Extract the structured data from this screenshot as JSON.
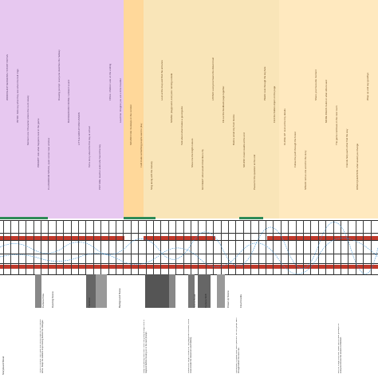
{
  "sheet": {
    "footer_label": "Storyboard Sheet",
    "bands": [
      {
        "color": "#e7c8f0"
      },
      {
        "color": "#ffd89a"
      },
      {
        "color": "#f9e5b8"
      },
      {
        "color": "#ffe9bf"
      }
    ],
    "column_texts": [
      "WORKSHOP SESSIONS / STORY NOTES",
      "INTRO: Kids say what they see when the bell rings",
      "Moment one: Character enters the room slowly",
      "PROMPT: Ask what happens next in the game",
      "CLASSROOM SPACE, quiet corner near window",
      "Drawing prompt: everyone sketches the hallway",
      "BACKGROUND NOISE / ambient sound",
      "LITTLE GROUP DISCUSSION",
      "Tell a story about the first day at school",
      "PICTURE: teacher asks who found the key",
      "FINAL: children vote on the ending",
      "Lead line: Imagine you are a time traveller",
      "SOUND CUE: footsteps in the corridor",
      "I will make something people want to play",
      "Sing along with the melody",
      "Look at the map and find the entrance",
      "SCENE: playground, everyone running outside",
      "Talk about what makes a good game",
      "Show me the bright colours",
      "GO DEEP: what would it feel like to fly",
      "LISTEN: everyone hears the distant train",
      "Fill out the feedback page together",
      "Build a small city from blocks",
      "SOUND: music swells at the end",
      "Pause for the question at the end",
      "PEEK: look through the keyhole",
      "Find the hidden object on the page",
      "CLOSE UP: look at the tiny details",
      "Follow the path through the forest",
      "SPEAK: tell us one word for the story",
      "Share your favourite moment",
      "MORE IDEAS: build on what others said",
      "The game continues in the next room",
      "Friends help each other find the way",
      "OPEN QUESTION: what would you change",
      "Wrap up and say goodbye"
    ],
    "row_labels": [
      "Camera Flow",
      "Opening Scene",
      "Transition",
      "Background Noise",
      "Scene Break",
      "Camera Shift",
      "Close Up Scene",
      "Final Credits"
    ],
    "notes": [
      "Notes on sound: start quiet and slowly build as the children arrive. Keep the ambient loop running behind the dialogue.",
      "Keep the pacing calm here. Give the group enough time to respond before moving on to the next prompt.",
      "Visual note: bright colours for the playground scenes, softer tones inside the classroom and hallway.",
      "Remember to pause after each question. Let the group talk it through before the next cue.",
      "End on a high note with music and a clear goodbye so everyone knows the session is finished."
    ]
  }
}
